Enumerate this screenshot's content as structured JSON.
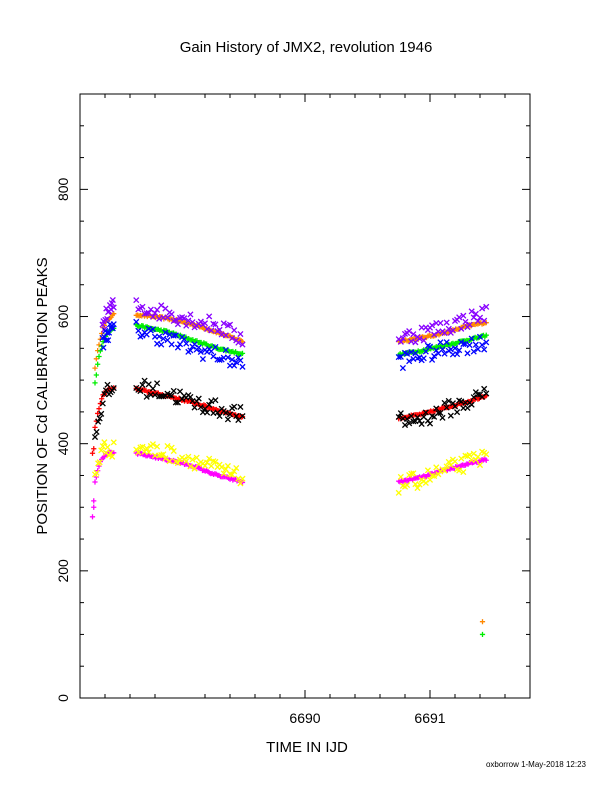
{
  "chart_data": {
    "type": "scatter",
    "title": "Gain History of JMX2, revolution 1946",
    "xlabel": "TIME IN IJD",
    "ylabel": "POSITION OF Cd CALIBRATION PEAKS",
    "xlim": [
      6688.2,
      6691.8
    ],
    "ylim": [
      0,
      950
    ],
    "xticks": [
      6690,
      6691
    ],
    "yticks": [
      0,
      200,
      400,
      600,
      800
    ],
    "grid": false,
    "footer": "oxborrow  1-May-2018 12:23",
    "series": [
      {
        "color": "#ff8800",
        "marker": "plus",
        "segments": [
          {
            "x": [
              6688.32,
              6688.35,
              6688.38,
              6688.42,
              6688.47
            ],
            "y": [
              520,
              555,
              580,
              595,
              603
            ]
          },
          {
            "x": [
              6688.65,
              6688.9,
              6689.1,
              6689.3,
              6689.5
            ],
            "y": [
              603,
              597,
              588,
              575,
              561
            ]
          },
          {
            "x": [
              6690.75,
              6690.95,
              6691.15,
              6691.3,
              6691.45
            ],
            "y": [
              561,
              567,
              576,
              585,
              591
            ]
          }
        ],
        "outliers": {
          "x": [
            6691.42
          ],
          "y": [
            120
          ]
        }
      },
      {
        "color": "#00ee00",
        "marker": "plus",
        "segments": [
          {
            "x": [
              6688.32,
              6688.35,
              6688.38,
              6688.42,
              6688.47
            ],
            "y": [
              495,
              535,
              560,
              575,
              582
            ]
          },
          {
            "x": [
              6688.65,
              6688.9,
              6689.1,
              6689.3,
              6689.5
            ],
            "y": [
              586,
              576,
              563,
              550,
              541
            ]
          },
          {
            "x": [
              6690.75,
              6690.95,
              6691.15,
              6691.3,
              6691.45
            ],
            "y": [
              540,
              547,
              556,
              563,
              570
            ]
          }
        ],
        "outliers": {
          "x": [
            6691.42
          ],
          "y": [
            100
          ]
        }
      },
      {
        "color": "#ff0000",
        "marker": "plus",
        "segments": [
          {
            "x": [
              6688.32,
              6688.35,
              6688.38,
              6688.42,
              6688.47
            ],
            "y": [
              425,
              455,
              475,
              485,
              487
            ]
          },
          {
            "x": [
              6688.65,
              6688.9,
              6689.1,
              6689.3,
              6689.5
            ],
            "y": [
              486,
              475,
              465,
              453,
              442
            ]
          },
          {
            "x": [
              6690.75,
              6690.95,
              6691.15,
              6691.3,
              6691.45
            ],
            "y": [
              440,
              447,
              458,
              466,
              476
            ]
          }
        ],
        "outliers": {
          "x": [
            6688.3,
            6688.31
          ],
          "y": [
            385,
            392
          ]
        }
      },
      {
        "color": "#ff00ff",
        "marker": "plus",
        "segments": [
          {
            "x": [
              6688.32,
              6688.35,
              6688.38,
              6688.42,
              6688.47
            ],
            "y": [
              340,
              365,
              378,
              385,
              385
            ]
          },
          {
            "x": [
              6688.65,
              6688.9,
              6689.1,
              6689.3,
              6689.5
            ],
            "y": [
              385,
              375,
              365,
              350,
              340
            ]
          },
          {
            "x": [
              6690.75,
              6690.95,
              6691.15,
              6691.3,
              6691.45
            ],
            "y": [
              340,
              348,
              360,
              368,
              375
            ]
          }
        ],
        "outliers": {
          "x": [
            6688.3,
            6688.31,
            6688.31
          ],
          "y": [
            285,
            300,
            310
          ]
        }
      },
      {
        "color": "#8800ff",
        "marker": "cross",
        "segments": [
          {
            "x": [
              6688.38,
              6688.42,
              6688.47
            ],
            "y": [
              585,
              605,
              618
            ]
          },
          {
            "x": [
              6688.65,
              6688.9,
              6689.1,
              6689.3,
              6689.5
            ],
            "y": [
              615,
              605,
              595,
              585,
              565
            ]
          },
          {
            "x": [
              6690.75,
              6690.95,
              6691.15,
              6691.3,
              6691.45
            ],
            "y": [
              565,
              575,
              585,
              595,
              605
            ]
          }
        ],
        "outliers": {
          "x": [],
          "y": []
        }
      },
      {
        "color": "#0000ff",
        "marker": "cross",
        "segments": [
          {
            "x": [
              6688.38,
              6688.42,
              6688.47
            ],
            "y": [
              560,
              575,
              580
            ]
          },
          {
            "x": [
              6688.65,
              6688.9,
              6689.1,
              6689.3,
              6689.5
            ],
            "y": [
              580,
              565,
              550,
              540,
              525
            ]
          },
          {
            "x": [
              6690.75,
              6690.95,
              6691.15,
              6691.3,
              6691.45
            ],
            "y": [
              530,
              540,
              550,
              555,
              560
            ]
          }
        ],
        "outliers": {
          "x": [],
          "y": []
        }
      },
      {
        "color": "#000000",
        "marker": "cross",
        "segments": [
          {
            "x": [
              6688.32,
              6688.35,
              6688.38,
              6688.42,
              6688.47
            ],
            "y": [
              410,
              440,
              465,
              480,
              485
            ]
          },
          {
            "x": [
              6688.65,
              6688.9,
              6689.1,
              6689.3,
              6689.5
            ],
            "y": [
              490,
              480,
              465,
              455,
              445
            ]
          },
          {
            "x": [
              6690.75,
              6690.95,
              6691.15,
              6691.3,
              6691.45
            ],
            "y": [
              435,
              440,
              455,
              465,
              480
            ]
          }
        ],
        "outliers": {
          "x": [],
          "y": []
        }
      },
      {
        "color": "#ffff00",
        "marker": "cross",
        "segments": [
          {
            "x": [
              6688.32,
              6688.35,
              6688.38,
              6688.42,
              6688.47
            ],
            "y": [
              350,
              375,
              390,
              395,
              390
            ]
          },
          {
            "x": [
              6688.65,
              6688.9,
              6689.1,
              6689.3,
              6689.5
            ],
            "y": [
              395,
              385,
              375,
              360,
              345
            ]
          },
          {
            "x": [
              6690.75,
              6690.95,
              6691.15,
              6691.3,
              6691.45
            ],
            "y": [
              335,
              345,
              360,
              370,
              380
            ]
          }
        ],
        "outliers": {
          "x": [],
          "y": []
        }
      }
    ]
  }
}
